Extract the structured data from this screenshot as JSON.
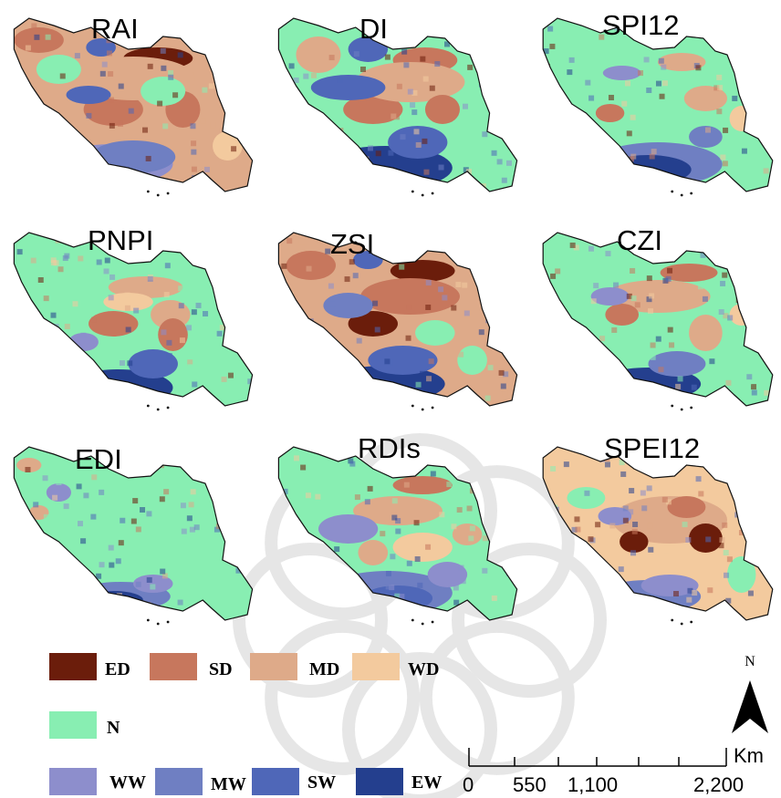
{
  "colors": {
    "ED": "#6b1d0b",
    "SD": "#c7775d",
    "MD": "#deaa89",
    "WD": "#f3ca9e",
    "N": "#88eeb2",
    "WW": "#8d8ecc",
    "MW": "#6f7fc2",
    "SW": "#4f67b8",
    "EW": "#243f8e"
  },
  "maps": [
    {
      "title": "RAI",
      "base": "MD",
      "patches": [
        [
          "ED",
          0.6,
          0.22,
          0.14,
          0.06
        ],
        [
          "SD",
          0.42,
          0.5,
          0.12,
          0.09
        ],
        [
          "SD",
          0.12,
          0.12,
          0.1,
          0.07
        ],
        [
          "SD",
          0.7,
          0.5,
          0.07,
          0.1
        ],
        [
          "MD",
          0.5,
          0.33,
          0.25,
          0.12
        ],
        [
          "N",
          0.2,
          0.28,
          0.09,
          0.08
        ],
        [
          "N",
          0.62,
          0.4,
          0.09,
          0.08
        ],
        [
          "WW",
          0.42,
          0.8,
          0.24,
          0.11
        ],
        [
          "MW",
          0.5,
          0.76,
          0.17,
          0.09
        ],
        [
          "SW",
          0.32,
          0.42,
          0.09,
          0.05
        ],
        [
          "WD",
          0.88,
          0.7,
          0.06,
          0.08
        ],
        [
          "SW",
          0.37,
          0.16,
          0.06,
          0.05
        ]
      ]
    },
    {
      "title": "DI",
      "base": "N",
      "patches": [
        [
          "SD",
          0.61,
          0.23,
          0.13,
          0.07
        ],
        [
          "SD",
          0.4,
          0.5,
          0.12,
          0.08
        ],
        [
          "MD",
          0.55,
          0.35,
          0.22,
          0.11
        ],
        [
          "SW",
          0.3,
          0.38,
          0.15,
          0.07
        ],
        [
          "SW",
          0.38,
          0.17,
          0.08,
          0.07
        ],
        [
          "EW",
          0.45,
          0.82,
          0.27,
          0.12
        ],
        [
          "SW",
          0.58,
          0.68,
          0.12,
          0.09
        ],
        [
          "MD",
          0.18,
          0.2,
          0.09,
          0.1
        ],
        [
          "SD",
          0.68,
          0.5,
          0.07,
          0.08
        ]
      ]
    },
    {
      "title": "SPI12",
      "base": "N",
      "patches": [
        [
          "MW",
          0.5,
          0.8,
          0.27,
          0.12
        ],
        [
          "EW",
          0.46,
          0.83,
          0.18,
          0.08
        ],
        [
          "SD",
          0.3,
          0.52,
          0.06,
          0.05
        ],
        [
          "MD",
          0.7,
          0.44,
          0.09,
          0.07
        ],
        [
          "MD",
          0.6,
          0.24,
          0.1,
          0.05
        ],
        [
          "WW",
          0.35,
          0.3,
          0.08,
          0.04
        ],
        [
          "WD",
          0.85,
          0.55,
          0.05,
          0.07
        ],
        [
          "MW",
          0.7,
          0.65,
          0.07,
          0.06
        ]
      ]
    },
    {
      "title": "PNPI",
      "base": "N",
      "patches": [
        [
          "SD",
          0.42,
          0.5,
          0.1,
          0.07
        ],
        [
          "MD",
          0.55,
          0.3,
          0.15,
          0.06
        ],
        [
          "MD",
          0.65,
          0.45,
          0.08,
          0.08
        ],
        [
          "SD",
          0.66,
          0.56,
          0.06,
          0.09
        ],
        [
          "EW",
          0.44,
          0.85,
          0.22,
          0.1
        ],
        [
          "SW",
          0.58,
          0.72,
          0.1,
          0.08
        ],
        [
          "WW",
          0.3,
          0.6,
          0.06,
          0.05
        ],
        [
          "WD",
          0.48,
          0.38,
          0.1,
          0.05
        ]
      ]
    },
    {
      "title": "ZSI",
      "base": "MD",
      "patches": [
        [
          "ED",
          0.6,
          0.21,
          0.13,
          0.06
        ],
        [
          "SD",
          0.55,
          0.35,
          0.2,
          0.1
        ],
        [
          "ED",
          0.4,
          0.5,
          0.1,
          0.07
        ],
        [
          "SD",
          0.15,
          0.18,
          0.1,
          0.08
        ],
        [
          "MW",
          0.3,
          0.4,
          0.1,
          0.07
        ],
        [
          "SW",
          0.38,
          0.15,
          0.06,
          0.05
        ],
        [
          "EW",
          0.45,
          0.83,
          0.24,
          0.1
        ],
        [
          "SW",
          0.52,
          0.7,
          0.14,
          0.08
        ],
        [
          "N",
          0.65,
          0.55,
          0.08,
          0.07
        ],
        [
          "N",
          0.8,
          0.7,
          0.06,
          0.08
        ]
      ]
    },
    {
      "title": "CZI",
      "base": "N",
      "patches": [
        [
          "MD",
          0.5,
          0.35,
          0.22,
          0.09
        ],
        [
          "SD",
          0.63,
          0.22,
          0.12,
          0.05
        ],
        [
          "SD",
          0.35,
          0.45,
          0.07,
          0.06
        ],
        [
          "MD",
          0.7,
          0.55,
          0.07,
          0.1
        ],
        [
          "EW",
          0.46,
          0.83,
          0.22,
          0.09
        ],
        [
          "MW",
          0.58,
          0.72,
          0.12,
          0.07
        ],
        [
          "WW",
          0.3,
          0.35,
          0.08,
          0.05
        ],
        [
          "WD",
          0.85,
          0.45,
          0.05,
          0.06
        ]
      ]
    },
    {
      "title": "EDI",
      "base": "N",
      "patches": [
        [
          "MW",
          0.45,
          0.82,
          0.2,
          0.08
        ],
        [
          "EW",
          0.42,
          0.84,
          0.12,
          0.05
        ],
        [
          "WW",
          0.58,
          0.75,
          0.08,
          0.05
        ],
        [
          "WW",
          0.2,
          0.25,
          0.05,
          0.05
        ],
        [
          "MD",
          0.08,
          0.1,
          0.05,
          0.04
        ],
        [
          "MD",
          0.12,
          0.36,
          0.04,
          0.04
        ]
      ]
    },
    {
      "title": "RDIs",
      "base": "N",
      "patches": [
        [
          "SD",
          0.6,
          0.21,
          0.12,
          0.05
        ],
        [
          "MD",
          0.5,
          0.35,
          0.18,
          0.08
        ],
        [
          "WW",
          0.3,
          0.45,
          0.12,
          0.08
        ],
        [
          "MW",
          0.46,
          0.8,
          0.26,
          0.12
        ],
        [
          "SW",
          0.5,
          0.83,
          0.14,
          0.07
        ],
        [
          "WD",
          0.6,
          0.55,
          0.12,
          0.08
        ],
        [
          "MD",
          0.4,
          0.58,
          0.06,
          0.07
        ],
        [
          "WW",
          0.7,
          0.7,
          0.08,
          0.07
        ],
        [
          "MD",
          0.78,
          0.48,
          0.06,
          0.06
        ]
      ]
    },
    {
      "title": "SPEI12",
      "base": "WD",
      "patches": [
        [
          "MD",
          0.55,
          0.4,
          0.24,
          0.13
        ],
        [
          "ED",
          0.4,
          0.52,
          0.06,
          0.06
        ],
        [
          "ED",
          0.7,
          0.5,
          0.07,
          0.08
        ],
        [
          "SD",
          0.62,
          0.33,
          0.08,
          0.06
        ],
        [
          "MW",
          0.46,
          0.82,
          0.22,
          0.09
        ],
        [
          "WW",
          0.55,
          0.76,
          0.12,
          0.06
        ],
        [
          "N",
          0.2,
          0.28,
          0.08,
          0.06
        ],
        [
          "N",
          0.85,
          0.7,
          0.06,
          0.1
        ],
        [
          "N",
          0.92,
          0.55,
          0.04,
          0.08
        ],
        [
          "WW",
          0.32,
          0.38,
          0.07,
          0.05
        ]
      ]
    }
  ],
  "legend": [
    {
      "key": "ED",
      "label": "ED"
    },
    {
      "key": "SD",
      "label": "SD"
    },
    {
      "key": "MD",
      "label": "MD"
    },
    {
      "key": "WD",
      "label": "WD"
    },
    {
      "key": "N",
      "label": "N"
    },
    {
      "key": "WW",
      "label": "WW"
    },
    {
      "key": "MW",
      "label": "MW"
    },
    {
      "key": "SW",
      "label": "SW"
    },
    {
      "key": "EW",
      "label": "EW"
    }
  ],
  "north_arrow": {
    "label": "N"
  },
  "scale_bar": {
    "unit": "Km",
    "ticks": [
      "0",
      "550",
      "1,100",
      "2,200"
    ]
  }
}
